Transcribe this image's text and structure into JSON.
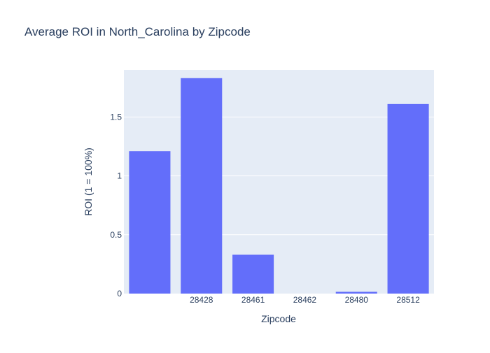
{
  "chart_data": {
    "type": "bar",
    "title": "Average ROI in North_Carolina by Zipcode",
    "xlabel": "Zipcode",
    "ylabel": "ROI (1 = 100%)",
    "categories": [
      "",
      "28428",
      "28461",
      "28462",
      "28480",
      "28512"
    ],
    "values": [
      1.21,
      1.83,
      0.33,
      0.0,
      0.015,
      1.61
    ],
    "ylim": [
      0,
      1.9
    ],
    "yticks": [
      0,
      0.5,
      1,
      1.5
    ],
    "ytick_labels": [
      "0",
      "0.5",
      "1",
      "1.5"
    ],
    "grid": true,
    "colors": {
      "bar": "#636efa",
      "plot_bg": "#e5ecf6",
      "grid": "#ffffff",
      "text": "#2a3f5f"
    }
  }
}
